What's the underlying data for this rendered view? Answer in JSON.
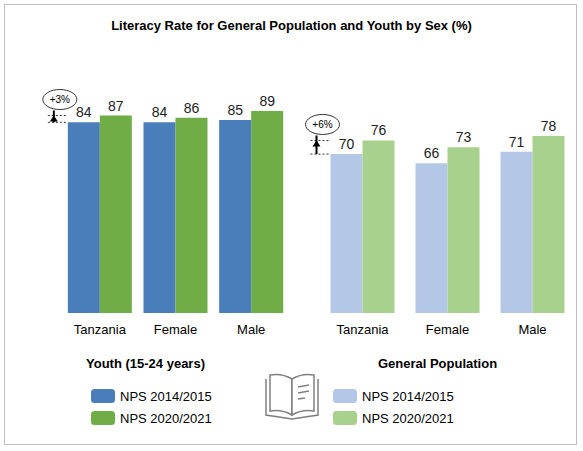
{
  "title": "Literacy Rate for General Population and Youth by Sex (%)",
  "chart_data": [
    {
      "type": "bar",
      "title": "Youth (15-24 years)",
      "categories": [
        "Tanzania",
        "Female",
        "Male"
      ],
      "series": [
        {
          "name": "NPS 2014/2015",
          "color": "#4a7ebb",
          "values": [
            84,
            84,
            85
          ]
        },
        {
          "name": "NPS 2020/2021",
          "color": "#70ad47",
          "values": [
            87,
            86,
            89
          ]
        }
      ],
      "ylim": [
        0,
        100
      ],
      "grid": false,
      "data_labels": true,
      "tick_labels": "x",
      "legend": "bottom",
      "annotations": [
        {
          "text": "+3%",
          "category": "Tanzania"
        }
      ]
    },
    {
      "type": "bar",
      "title": "General Population",
      "categories": [
        "Tanzania",
        "Female",
        "Male"
      ],
      "series": [
        {
          "name": "NPS 2014/2015",
          "color": "#b4c7e7",
          "values": [
            70,
            66,
            71
          ]
        },
        {
          "name": "NPS 2020/2021",
          "color": "#a9d18e",
          "values": [
            76,
            73,
            78
          ]
        }
      ],
      "ylim": [
        0,
        100
      ],
      "grid": false,
      "data_labels": true,
      "tick_labels": "x",
      "legend": "bottom",
      "annotations": [
        {
          "text": "+6%",
          "category": "Tanzania"
        }
      ]
    }
  ]
}
